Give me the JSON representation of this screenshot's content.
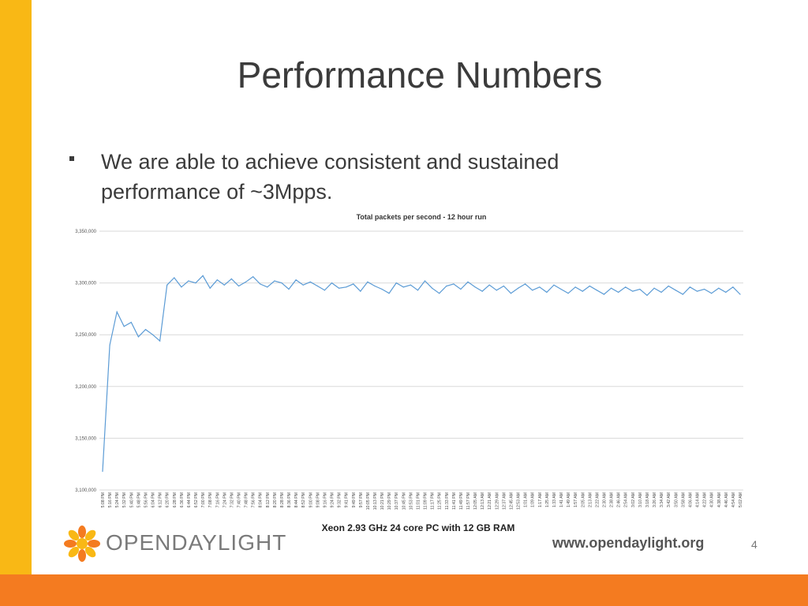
{
  "slide": {
    "title": "Performance Numbers",
    "bullet": "We are able to achieve consistent and sustained performance of ~3Mpps.",
    "caption": "Xeon 2.93 GHz 24 core PC with 12 GB RAM",
    "logo_text": "OPENDAYLIGHT",
    "url": "www.opendaylight.org",
    "page_number": "4",
    "colors": {
      "left_bar": "#f9b815",
      "bottom_bar": "#f47b20",
      "series": "#5b9bd5"
    }
  },
  "chart_data": {
    "type": "line",
    "title": "Total packets per second - 12 hour run",
    "ylim": [
      3100000,
      3350000
    ],
    "y_ticks": [
      "3,100,000",
      "3,150,000",
      "3,200,000",
      "3,250,000",
      "3,300,000",
      "3,350,000"
    ],
    "y_tick_values": [
      3100000,
      3150000,
      3200000,
      3250000,
      3300000,
      3350000
    ],
    "x_tick_labels": [
      "5:08 PM",
      "5:16 PM",
      "5:24 PM",
      "5:32 PM",
      "5:40 PM",
      "5:48 PM",
      "5:56 PM",
      "6:04 PM",
      "6:12 PM",
      "6:20 PM",
      "6:28 PM",
      "6:36 PM",
      "6:44 PM",
      "6:52 PM",
      "7:00 PM",
      "7:08 PM",
      "7:16 PM",
      "7:24 PM",
      "7:32 PM",
      "7:40 PM",
      "7:48 PM",
      "7:56 PM",
      "8:04 PM",
      "8:12 PM",
      "8:20 PM",
      "8:28 PM",
      "8:36 PM",
      "8:44 PM",
      "8:52 PM",
      "9:00 PM",
      "9:08 PM",
      "9:16 PM",
      "9:24 PM",
      "9:32 PM",
      "9:41 PM",
      "9:49 PM",
      "9:57 PM",
      "10:05 PM",
      "10:13 PM",
      "10:21 PM",
      "10:29 PM",
      "10:37 PM",
      "10:45 PM",
      "10:53 PM",
      "11:01 PM",
      "11:09 PM",
      "11:17 PM",
      "11:25 PM",
      "11:33 PM",
      "11:41 PM",
      "11:49 PM",
      "11:57 PM",
      "12:05 AM",
      "12:13 AM",
      "12:21 AM",
      "12:29 AM",
      "12:37 AM",
      "12:45 AM",
      "12:53 AM",
      "1:01 AM",
      "1:09 AM",
      "1:17 AM",
      "1:25 AM",
      "1:33 AM",
      "1:41 AM",
      "1:49 AM",
      "1:57 AM",
      "2:05 AM",
      "2:13 AM",
      "2:22 AM",
      "2:30 AM",
      "2:38 AM",
      "2:46 AM",
      "2:54 AM",
      "3:02 AM",
      "3:10 AM",
      "3:18 AM",
      "3:26 AM",
      "3:34 AM",
      "3:42 AM",
      "3:50 AM",
      "3:58 AM",
      "4:06 AM",
      "4:14 AM",
      "4:22 AM",
      "4:30 AM",
      "4:38 AM",
      "4:46 AM",
      "4:54 AM",
      "5:02 AM"
    ],
    "values": [
      3118000,
      3240000,
      3272000,
      3258000,
      3262000,
      3248000,
      3255000,
      3250000,
      3244000,
      3298000,
      3305000,
      3296000,
      3302000,
      3300000,
      3307000,
      3295000,
      3303000,
      3298000,
      3304000,
      3297000,
      3301000,
      3306000,
      3299000,
      3296000,
      3302000,
      3300000,
      3294000,
      3303000,
      3298000,
      3301000,
      3297000,
      3293000,
      3300000,
      3295000,
      3296000,
      3299000,
      3292000,
      3301000,
      3297000,
      3294000,
      3290000,
      3300000,
      3296000,
      3298000,
      3293000,
      3302000,
      3295000,
      3290000,
      3297000,
      3299000,
      3294000,
      3301000,
      3296000,
      3292000,
      3298000,
      3293000,
      3297000,
      3290000,
      3295000,
      3299000,
      3293000,
      3296000,
      3291000,
      3298000,
      3294000,
      3290000,
      3296000,
      3292000,
      3297000,
      3293000,
      3289000,
      3295000,
      3291000,
      3296000,
      3292000,
      3294000,
      3288000,
      3295000,
      3291000,
      3297000,
      3293000,
      3289000,
      3296000,
      3292000,
      3294000,
      3290000,
      3295000,
      3291000,
      3296000,
      3289000
    ]
  }
}
